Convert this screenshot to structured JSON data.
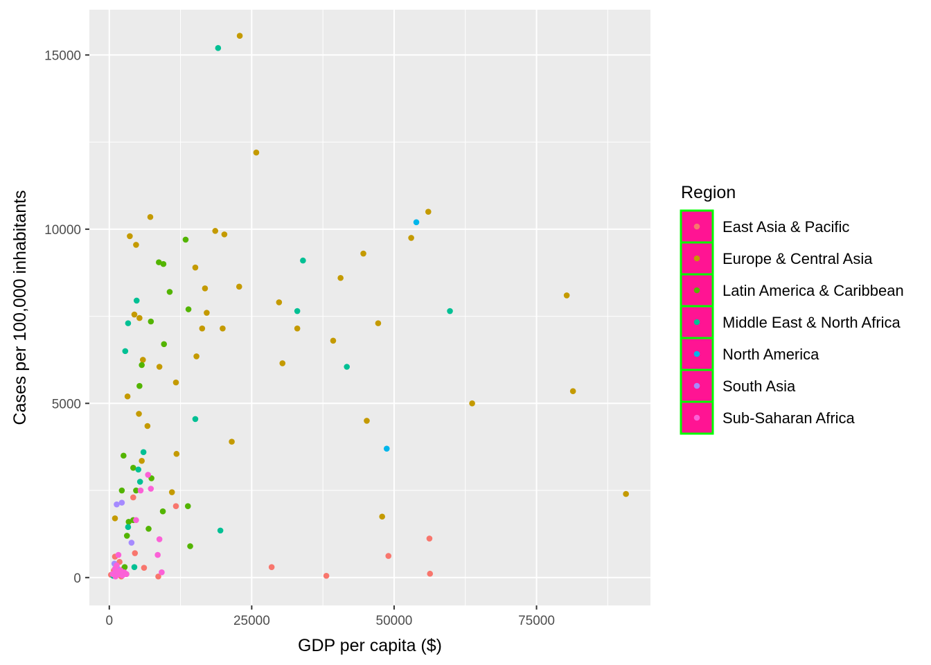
{
  "chart_data": {
    "type": "scatter",
    "xlabel": "GDP per capita ($)",
    "ylabel": "Cases per 100,000 inhabitants",
    "xlim": [
      -3500,
      95000
    ],
    "ylim": [
      -800,
      16300
    ],
    "x_ticks": [
      0,
      25000,
      50000,
      75000
    ],
    "x_tick_labels": [
      "0",
      "25000",
      "50000",
      "75000"
    ],
    "y_ticks": [
      0,
      5000,
      10000,
      15000
    ],
    "y_tick_labels": [
      "0",
      "5000",
      "10000",
      "15000"
    ],
    "grid": true,
    "legend": {
      "title": "Region",
      "placement": "right",
      "key_fill": "#ff1493",
      "key_border": "#00ff00"
    },
    "series": [
      {
        "name": "East Asia & Pacific",
        "color": "#f8766d",
        "points": [
          [
            300,
            80
          ],
          [
            800,
            200
          ],
          [
            1000,
            600
          ],
          [
            1200,
            300
          ],
          [
            1500,
            150
          ],
          [
            1800,
            450
          ],
          [
            2100,
            30
          ],
          [
            2500,
            250
          ],
          [
            3000,
            100
          ],
          [
            4200,
            2300
          ],
          [
            4500,
            700
          ],
          [
            6100,
            280
          ],
          [
            8600,
            30
          ],
          [
            11700,
            2050
          ],
          [
            28500,
            300
          ],
          [
            38100,
            50
          ],
          [
            49000,
            620
          ],
          [
            56200,
            1120
          ],
          [
            56300,
            110
          ]
        ]
      },
      {
        "name": "Europe & Central Asia",
        "color": "#c49a00",
        "points": [
          [
            22900,
            15550
          ],
          [
            25800,
            12200
          ],
          [
            56000,
            10500
          ],
          [
            7200,
            10350
          ],
          [
            18600,
            9950
          ],
          [
            20200,
            9850
          ],
          [
            3600,
            9800
          ],
          [
            4700,
            9550
          ],
          [
            53000,
            9750
          ],
          [
            44600,
            9300
          ],
          [
            15100,
            8900
          ],
          [
            40600,
            8600
          ],
          [
            80300,
            8100
          ],
          [
            16800,
            8300
          ],
          [
            22800,
            8350
          ],
          [
            29800,
            7900
          ],
          [
            4400,
            7550
          ],
          [
            5300,
            7450
          ],
          [
            17100,
            7600
          ],
          [
            16300,
            7150
          ],
          [
            19900,
            7150
          ],
          [
            33000,
            7150
          ],
          [
            47200,
            7300
          ],
          [
            39300,
            6800
          ],
          [
            5900,
            6250
          ],
          [
            30400,
            6150
          ],
          [
            15300,
            6350
          ],
          [
            8800,
            6050
          ],
          [
            81400,
            5350
          ],
          [
            3200,
            5200
          ],
          [
            11700,
            5600
          ],
          [
            63700,
            5000
          ],
          [
            5200,
            4700
          ],
          [
            6700,
            4350
          ],
          [
            45200,
            4500
          ],
          [
            21500,
            3900
          ],
          [
            11800,
            3550
          ],
          [
            5700,
            3350
          ],
          [
            11000,
            2450
          ],
          [
            90700,
            2400
          ],
          [
            47900,
            1750
          ],
          [
            1000,
            1700
          ]
        ]
      },
      {
        "name": "Latin America & Caribbean",
        "color": "#53b400",
        "points": [
          [
            13400,
            9700
          ],
          [
            8700,
            9050
          ],
          [
            9500,
            9000
          ],
          [
            10600,
            8200
          ],
          [
            13900,
            7700
          ],
          [
            7300,
            7350
          ],
          [
            9600,
            6700
          ],
          [
            5700,
            6100
          ],
          [
            5300,
            5500
          ],
          [
            2500,
            3500
          ],
          [
            4200,
            3150
          ],
          [
            2200,
            2500
          ],
          [
            4700,
            2500
          ],
          [
            7400,
            2850
          ],
          [
            9400,
            1900
          ],
          [
            13800,
            2050
          ],
          [
            3400,
            1600
          ],
          [
            4200,
            1650
          ],
          [
            6900,
            1400
          ],
          [
            3100,
            1200
          ],
          [
            14200,
            900
          ],
          [
            1400,
            250
          ],
          [
            2700,
            300
          ]
        ]
      },
      {
        "name": "Middle East & North Africa",
        "color": "#00c094",
        "points": [
          [
            19100,
            15200
          ],
          [
            34000,
            9100
          ],
          [
            4800,
            7950
          ],
          [
            33000,
            7650
          ],
          [
            59800,
            7650
          ],
          [
            3300,
            7300
          ],
          [
            2800,
            6500
          ],
          [
            41700,
            6050
          ],
          [
            15100,
            4550
          ],
          [
            6000,
            3600
          ],
          [
            5100,
            3100
          ],
          [
            5400,
            2750
          ],
          [
            3300,
            1450
          ],
          [
            19500,
            1350
          ],
          [
            4400,
            300
          ],
          [
            700,
            50
          ]
        ]
      },
      {
        "name": "North America",
        "color": "#00b6eb",
        "points": [
          [
            53900,
            10200
          ],
          [
            48700,
            3700
          ]
        ]
      },
      {
        "name": "South Asia",
        "color": "#a58aff",
        "points": [
          [
            2200,
            2150
          ],
          [
            1300,
            2100
          ],
          [
            3900,
            1000
          ],
          [
            900,
            400
          ],
          [
            1500,
            250
          ],
          [
            700,
            100
          ]
        ]
      },
      {
        "name": "Sub-Saharan Africa",
        "color": "#fb61d7",
        "points": [
          [
            6800,
            2950
          ],
          [
            7300,
            2550
          ],
          [
            5500,
            2500
          ],
          [
            4700,
            1650
          ],
          [
            8800,
            1100
          ],
          [
            8500,
            650
          ],
          [
            1600,
            650
          ],
          [
            9200,
            150
          ],
          [
            600,
            100
          ],
          [
            1000,
            250
          ],
          [
            1300,
            350
          ],
          [
            1700,
            100
          ],
          [
            2000,
            200
          ],
          [
            2300,
            60
          ],
          [
            2600,
            150
          ],
          [
            3000,
            100
          ],
          [
            1100,
            30
          ],
          [
            1500,
            180
          ]
        ]
      }
    ]
  }
}
